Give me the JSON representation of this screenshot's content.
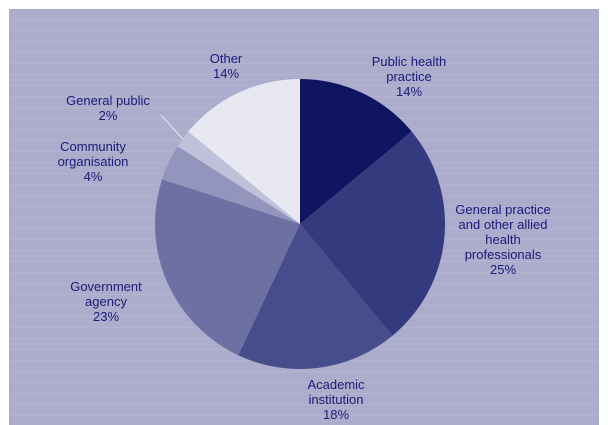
{
  "chart_data": {
    "type": "pie",
    "title": "",
    "start_angle_deg": 0,
    "direction": "clockwise",
    "slices": [
      {
        "label_lines": [
          "Public health",
          "practice"
        ],
        "value_label": "14%",
        "value": 14,
        "color": "#0f1560"
      },
      {
        "label_lines": [
          "General practice",
          "and other allied",
          "health",
          "professionals"
        ],
        "value_label": "25%",
        "value": 25,
        "color": "#353a7e"
      },
      {
        "label_lines": [
          "Academic",
          "institution"
        ],
        "value_label": "18%",
        "value": 18,
        "color": "#474c8a"
      },
      {
        "label_lines": [
          "Government",
          "agency"
        ],
        "value_label": "23%",
        "value": 23,
        "color": "#6d70a2"
      },
      {
        "label_lines": [
          "Community",
          "organisation"
        ],
        "value_label": "4%",
        "value": 4,
        "color": "#9495bd"
      },
      {
        "label_lines": [
          "General public"
        ],
        "value_label": "2%",
        "value": 2,
        "color": "#bfc0d9"
      },
      {
        "label_lines": [
          "Other"
        ],
        "value_label": "14%",
        "value": 14,
        "color": "#e8e8f2"
      }
    ],
    "legend": "none",
    "grid": false
  }
}
